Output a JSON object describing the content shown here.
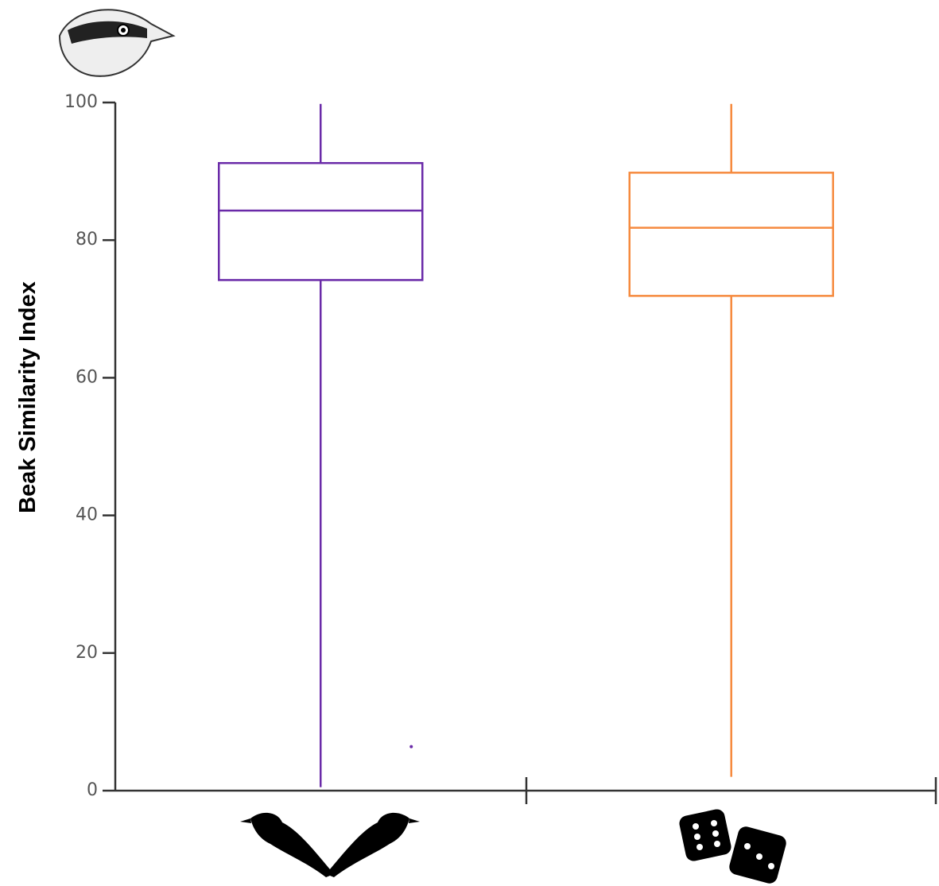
{
  "chart_data": {
    "type": "box",
    "y_label": "Beak Similarity Index",
    "categories": [
      null,
      null
    ],
    "boxes": [
      {
        "color": "#6a2aa8",
        "min": 0.5,
        "q1": 74.2,
        "median": 84.3,
        "q3": 91.2,
        "max": 99.8,
        "outliers": [
          6.4
        ]
      },
      {
        "color": "#f68a3e",
        "min": 2.0,
        "q1": 71.9,
        "median": 81.8,
        "q3": 89.8,
        "max": 99.8,
        "outliers": []
      }
    ],
    "ylim": [
      0,
      100
    ],
    "yticks": [
      0,
      20,
      40,
      60,
      80,
      100
    ]
  }
}
